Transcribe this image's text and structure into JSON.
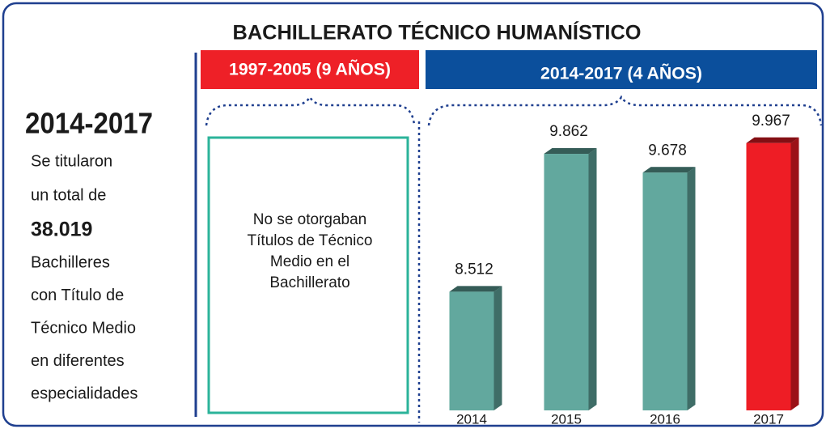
{
  "header": {
    "title": "BACHILLERATO TÉCNICO HUMANÍSTICO"
  },
  "summary": {
    "period": "2014-2017",
    "text_before": [
      "Se titularon",
      "un total de"
    ],
    "total": "38.019",
    "text_after": [
      "Bachilleres",
      "con Título de",
      "Técnico Medio",
      "en diferentes",
      "especialidades"
    ]
  },
  "panels": [
    {
      "label": "1997-2005 (9 AÑOS)",
      "color": "#ee2027",
      "note": [
        "No se otorgaban",
        "Títulos de Técnico",
        "Medio en el",
        "Bachillerato"
      ]
    },
    {
      "label": "2014-2017 (4 AÑOS)",
      "color": "#0b4f9c"
    }
  ],
  "chart_data": {
    "type": "bar",
    "categories": [
      "2014",
      "2015",
      "2016",
      "2017"
    ],
    "values": [
      8512,
      9862,
      9678,
      9967
    ],
    "value_labels": [
      "8.512",
      "9.862",
      "9.678",
      "9.967"
    ],
    "colors": [
      "#62a89e",
      "#62a89e",
      "#62a89e",
      "#ee1d25"
    ],
    "ylim": [
      7350,
      10100
    ]
  }
}
